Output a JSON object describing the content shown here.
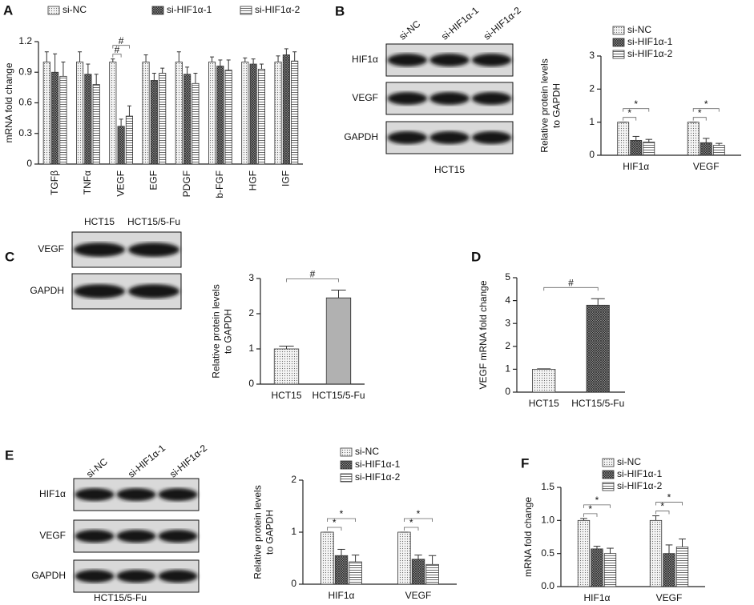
{
  "panels": [
    "A",
    "B",
    "C",
    "D",
    "E",
    "F"
  ],
  "blots": [
    {
      "lanes": [
        "si-NC",
        "si-HIF1α-1",
        "si-HIF1α-2"
      ],
      "rows": [
        "HIF1α",
        "VEGF",
        "GAPDH"
      ],
      "caption": "HCT15"
    },
    {
      "lanes": [
        "HCT15",
        "HCT15/5-Fu"
      ],
      "rows": [
        "VEGF",
        "GAPDH"
      ]
    },
    {
      "lanes": [
        "si-NC",
        "si-HIF1α-1",
        "si-HIF1α-2"
      ],
      "rows": [
        "HIF1α",
        "VEGF",
        "GAPDH"
      ],
      "caption": "HCT15/5-Fu"
    }
  ],
  "chart_data": [
    {
      "type": "bar",
      "y_label": [
        "mRNA fold change"
      ],
      "categories": [
        "TGFβ",
        "TNFα",
        "VEGF",
        "EGF",
        "PDGF",
        "b-FGF",
        "HGF",
        "IGF"
      ],
      "series": [
        {
          "name": "si-NC",
          "pattern": "dots",
          "values": [
            1.0,
            1.0,
            1.0,
            1.0,
            1.0,
            1.0,
            1.0,
            1.0
          ],
          "errors": [
            0.1,
            0.1,
            0.03,
            0.07,
            0.1,
            0.05,
            0.04,
            0.06
          ]
        },
        {
          "name": "si-HIF1α-1",
          "pattern": "grid",
          "values": [
            0.9,
            0.88,
            0.37,
            0.82,
            0.88,
            0.96,
            0.98,
            1.07
          ],
          "errors": [
            0.18,
            0.1,
            0.07,
            0.07,
            0.07,
            0.06,
            0.05,
            0.06
          ]
        },
        {
          "name": "si-HIF1α-2",
          "pattern": "hlines",
          "values": [
            0.86,
            0.78,
            0.47,
            0.89,
            0.79,
            0.92,
            0.93,
            1.01
          ],
          "errors": [
            0.14,
            0.1,
            0.1,
            0.05,
            0.1,
            0.1,
            0.05,
            0.09
          ]
        }
      ],
      "annotations": [
        "#",
        "#"
      ],
      "ylim": [
        0,
        1.2
      ],
      "yticks": [
        0,
        0.3,
        0.6,
        0.9,
        1.2
      ]
    },
    {
      "type": "bar",
      "y_label": [
        "Relative protein levels",
        "to GAPDH"
      ],
      "categories": [
        "HIF1α",
        "VEGF"
      ],
      "series": [
        {
          "name": "si-NC",
          "pattern": "dots",
          "values": [
            1,
            1
          ],
          "errors": [
            0,
            0
          ]
        },
        {
          "name": "si-HIF1α-1",
          "pattern": "grid",
          "values": [
            0.45,
            0.38
          ],
          "errors": [
            0.12,
            0.13
          ]
        },
        {
          "name": "si-HIF1α-2",
          "pattern": "hlines",
          "values": [
            0.4,
            0.3
          ],
          "errors": [
            0.08,
            0.06
          ]
        }
      ],
      "annotations": [
        "*",
        "*",
        "*",
        "*"
      ],
      "ylim": [
        0,
        3
      ],
      "yticks": [
        0,
        1,
        2,
        3
      ]
    },
    {
      "type": "bar",
      "y_label": [
        "Relative protein levels",
        "to GAPDH"
      ],
      "categories": [
        "HCT15",
        "HCT15/5-Fu"
      ],
      "values": [
        1,
        2.45
      ],
      "errors": [
        0.08,
        0.22
      ],
      "patterns": [
        "dots",
        "dense"
      ],
      "annotations": [
        "#"
      ],
      "ylim": [
        0,
        3
      ],
      "yticks": [
        0,
        1,
        2,
        3
      ]
    },
    {
      "type": "bar",
      "y_label": [
        "VEGF mRNA fold change"
      ],
      "categories": [
        "HCT15",
        "HCT15/5-Fu"
      ],
      "values": [
        1,
        3.8
      ],
      "errors": [
        0.02,
        0.28
      ],
      "patterns": [
        "dots",
        "grid"
      ],
      "annotations": [
        "#"
      ],
      "ylim": [
        0,
        5
      ],
      "yticks": [
        0,
        1,
        2,
        3,
        4,
        5
      ]
    },
    {
      "type": "bar",
      "y_label": [
        "Relative protein levels",
        "to GAPDH"
      ],
      "categories": [
        "HIF1α",
        "VEGF"
      ],
      "series": [
        {
          "name": "si-NC",
          "pattern": "dots",
          "values": [
            1,
            1
          ],
          "errors": [
            0,
            0
          ]
        },
        {
          "name": "si-HIF1α-1",
          "pattern": "grid",
          "values": [
            0.55,
            0.48
          ],
          "errors": [
            0.12,
            0.08
          ]
        },
        {
          "name": "si-HIF1α-2",
          "pattern": "hlines",
          "values": [
            0.43,
            0.38
          ],
          "errors": [
            0.13,
            0.17
          ]
        }
      ],
      "annotations": [
        "*",
        "*",
        "*",
        "*"
      ],
      "ylim": [
        0,
        2
      ],
      "yticks": [
        0,
        1,
        2
      ]
    },
    {
      "type": "bar",
      "y_label": [
        "mRNA fold change"
      ],
      "categories": [
        "HIF1α",
        "VEGF"
      ],
      "series": [
        {
          "name": "si-NC",
          "pattern": "dots",
          "values": [
            1.0,
            1.0
          ],
          "errors": [
            0.03,
            0.07
          ]
        },
        {
          "name": "si-HIF1α-1",
          "pattern": "grid",
          "values": [
            0.57,
            0.5
          ],
          "errors": [
            0.04,
            0.13
          ]
        },
        {
          "name": "si-HIF1α-2",
          "pattern": "hlines",
          "values": [
            0.5,
            0.6
          ],
          "errors": [
            0.08,
            0.12
          ]
        }
      ],
      "annotations": [
        "*",
        "*",
        "*",
        "*"
      ],
      "ylim": [
        0,
        1.5
      ],
      "yticks": [
        {
          "value": 0,
          "label": "0.0"
        },
        {
          "value": 0.5,
          "label": "0.5"
        },
        {
          "value": 1.0,
          "label": "1.0"
        },
        {
          "value": 1.5,
          "label": "1.5"
        }
      ]
    }
  ]
}
